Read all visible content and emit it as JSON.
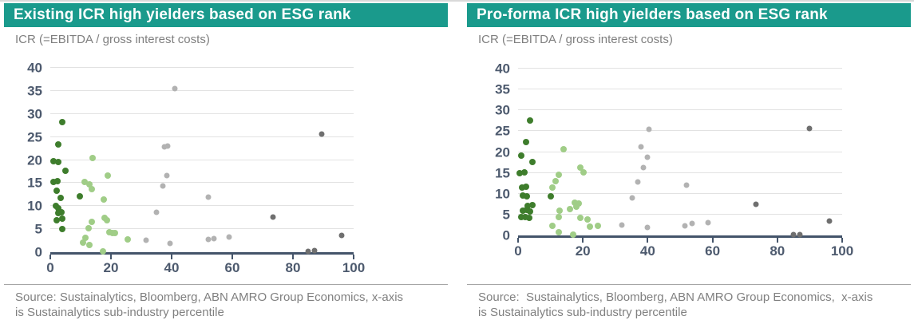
{
  "colors": {
    "header_bg": "#1a9a8c",
    "header_text": "#ffffff",
    "subtitle_text": "#7f7f7f",
    "source_text": "#808080",
    "tick_label": "#4d5a6e",
    "axis": "#44546a",
    "gridline": "#e2e2e2",
    "divider": "#a6a6a6",
    "dark_green": "#3e7d2c",
    "light_green": "#a0cd87",
    "light_gray": "#b2b2b2",
    "dark_gray": "#6f6f6f"
  },
  "chart_data": [
    {
      "type": "scatter",
      "title": "Existing ICR high yielders based on ESG rank",
      "subtitle": "ICR (=EBITDA / gross interest costs)",
      "source": "Source: Sustainalytics, Bloomberg, ABN AMRO Group Economics, x-axis\nis Sustainalytics sub-industry percentile",
      "xlim": [
        0,
        100
      ],
      "ylim": [
        0,
        40
      ],
      "x_ticks": [
        0,
        20,
        40,
        60,
        80,
        100
      ],
      "y_ticks": [
        0,
        5,
        10,
        15,
        20,
        25,
        30,
        35,
        40
      ],
      "grid": "horizontal",
      "legend": "none",
      "series": [
        {
          "name": "dark-green",
          "color": "dark_green",
          "point_size": 8,
          "points": [
            [
              4,
              28.3
            ],
            [
              2.5,
              23.3
            ],
            [
              1,
              19.8
            ],
            [
              2.5,
              19.6
            ],
            [
              5,
              17.6
            ],
            [
              1,
              15.2
            ],
            [
              2.3,
              15.4
            ],
            [
              2,
              13.3
            ],
            [
              3.3,
              11.7
            ],
            [
              9.8,
              12.2
            ],
            [
              1.8,
              10.1
            ],
            [
              2.5,
              9.5
            ],
            [
              2.5,
              8.5
            ],
            [
              3.6,
              8.7
            ],
            [
              2.2,
              6.9
            ],
            [
              4,
              7.2
            ],
            [
              4,
              5
            ]
          ]
        },
        {
          "name": "light-green",
          "color": "light_green",
          "point_size": 8,
          "points": [
            [
              14,
              20.5
            ],
            [
              19,
              16.6
            ],
            [
              11.3,
              15.2
            ],
            [
              13,
              14.8
            ],
            [
              13.6,
              13.7
            ],
            [
              17.6,
              11.5
            ],
            [
              18,
              7.5
            ],
            [
              18.8,
              7
            ],
            [
              13.7,
              6.6
            ],
            [
              12.5,
              5.2
            ],
            [
              19.5,
              4.3
            ],
            [
              20.5,
              4.2
            ],
            [
              21.3,
              4.1
            ],
            [
              25.4,
              2.7
            ],
            [
              11.5,
              3.1
            ],
            [
              10.8,
              2.1
            ],
            [
              13,
              1.5
            ],
            [
              17.3,
              0.2
            ]
          ]
        },
        {
          "name": "light-gray",
          "color": "light_gray",
          "point_size": 7,
          "points": [
            [
              41,
              35.5
            ],
            [
              37.5,
              22.8
            ],
            [
              38.8,
              23.1
            ],
            [
              38.3,
              16.6
            ],
            [
              37,
              14.4
            ],
            [
              35,
              8.7
            ],
            [
              31.6,
              2.6
            ],
            [
              39.5,
              1.9
            ],
            [
              52,
              12
            ],
            [
              52,
              2.8
            ],
            [
              54,
              3
            ],
            [
              59,
              3.3
            ]
          ]
        },
        {
          "name": "dark-gray",
          "color": "dark_gray",
          "point_size": 7,
          "points": [
            [
              89.5,
              25.7
            ],
            [
              73.5,
              7.6
            ],
            [
              96,
              3.6
            ],
            [
              85,
              0.2
            ],
            [
              87,
              0.4
            ]
          ]
        }
      ]
    },
    {
      "type": "scatter",
      "title": "Pro-forma ICR high yielders based on ESG rank",
      "subtitle": "ICR (=EBITDA / gross interest costs)",
      "source": "Source:  Sustainalytics, Bloomberg, ABN AMRO Group Economics,  x-axis\nis Sustainalytics sub-industry percentile",
      "xlim": [
        0,
        100
      ],
      "ylim": [
        0,
        40
      ],
      "x_ticks": [
        0,
        20,
        40,
        60,
        80,
        100
      ],
      "y_ticks": [
        0,
        5,
        10,
        15,
        20,
        25,
        30,
        35,
        40
      ],
      "grid": "horizontal",
      "legend": "none",
      "series": [
        {
          "name": "dark-green",
          "color": "dark_green",
          "point_size": 8,
          "points": [
            [
              3.7,
              27.6
            ],
            [
              2.4,
              22.3
            ],
            [
              1,
              19.1
            ],
            [
              4.5,
              17.7
            ],
            [
              0.6,
              15
            ],
            [
              2,
              15.1
            ],
            [
              1.2,
              11.5
            ],
            [
              2.4,
              11.7
            ],
            [
              1.4,
              9.5
            ],
            [
              2.6,
              9.4
            ],
            [
              10,
              9.4
            ],
            [
              2.9,
              7.1
            ],
            [
              4.5,
              7.2
            ],
            [
              1.4,
              6
            ],
            [
              2.6,
              6.2
            ],
            [
              3.7,
              5.8
            ],
            [
              1,
              4.4
            ],
            [
              2.2,
              4.5
            ],
            [
              3.4,
              4.2
            ]
          ]
        },
        {
          "name": "light-green",
          "color": "light_green",
          "point_size": 8,
          "points": [
            [
              14,
              20.7
            ],
            [
              19.1,
              16.3
            ],
            [
              20.1,
              15.1
            ],
            [
              12.6,
              14.6
            ],
            [
              11.5,
              13
            ],
            [
              10.5,
              11.4
            ],
            [
              17.6,
              7.9
            ],
            [
              18.6,
              7.7
            ],
            [
              18.1,
              6.9
            ],
            [
              16,
              6.3
            ],
            [
              12.9,
              6
            ],
            [
              12.6,
              4.5
            ],
            [
              19.3,
              4.2
            ],
            [
              21.5,
              3.8
            ],
            [
              24.6,
              2.3
            ],
            [
              22.1,
              2.1
            ],
            [
              10.7,
              2.3
            ],
            [
              12.6,
              0.8
            ],
            [
              17,
              0.1
            ]
          ]
        },
        {
          "name": "light-gray",
          "color": "light_gray",
          "point_size": 7,
          "points": [
            [
              40.3,
              25.4
            ],
            [
              37.9,
              21.3
            ],
            [
              40,
              18.7
            ],
            [
              38.6,
              16.3
            ],
            [
              36.9,
              12.9
            ],
            [
              35.3,
              9
            ],
            [
              32,
              2.4
            ],
            [
              40,
              2
            ],
            [
              52,
              12
            ],
            [
              51.6,
              2.3
            ],
            [
              53.8,
              2.9
            ],
            [
              58.7,
              3.1
            ]
          ]
        },
        {
          "name": "dark-gray",
          "color": "dark_gray",
          "point_size": 7,
          "points": [
            [
              90,
              25.7
            ],
            [
              73.5,
              7.5
            ],
            [
              96,
              3.5
            ],
            [
              85,
              0.1
            ],
            [
              87,
              0.2
            ]
          ]
        }
      ]
    }
  ]
}
